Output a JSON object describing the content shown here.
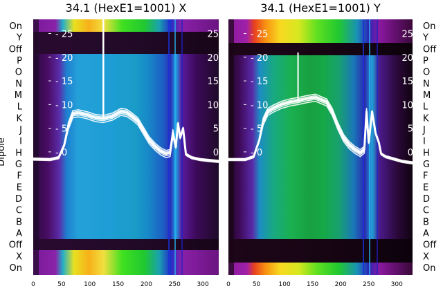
{
  "chart_data": [
    {
      "type": "heatmap",
      "title": "34.1 (HexE1=1001) X",
      "ylabel": "Dipole",
      "dipole_labels_left": [
        "On",
        "Y",
        "Off",
        "P",
        "O",
        "N",
        "M",
        "L",
        "K",
        "J",
        "I",
        "H",
        "G",
        "F",
        "E",
        "D",
        "C",
        "B",
        "A",
        "Off",
        "X",
        "On"
      ],
      "x_ticks": [
        0,
        50,
        100,
        150,
        200,
        250,
        300
      ],
      "y_ticks": [
        0,
        5,
        10,
        15,
        20,
        25
      ],
      "xlim": [
        0,
        328
      ],
      "ylim": [
        -26,
        28
      ],
      "spike_x": 124,
      "series": [
        {
          "x": [
            0,
            30,
            45,
            55,
            62,
            70,
            80,
            95,
            110,
            124,
            140,
            155,
            165,
            175,
            185,
            195,
            205,
            215,
            225,
            235,
            242,
            247,
            252,
            256,
            260,
            265,
            270,
            280,
            295,
            310,
            328
          ],
          "y": [
            -1.5,
            -1.6,
            -1.2,
            1.5,
            5.5,
            8,
            8.2,
            7.8,
            7.2,
            7.0,
            7.5,
            8.5,
            8.3,
            7.5,
            6.5,
            4.5,
            2.5,
            1.2,
            0.2,
            -0.4,
            -0.2,
            4,
            1,
            6,
            3,
            5,
            -0.5,
            -1.2,
            -1.6,
            -1.8,
            -2.0
          ]
        }
      ]
    },
    {
      "type": "heatmap",
      "title": "34.1 (HexE1=1001) Y",
      "dipole_labels_right": [
        "On",
        "Y",
        "Off",
        "P",
        "O",
        "N",
        "M",
        "L",
        "K",
        "J",
        "I",
        "H",
        "G",
        "F",
        "E",
        "D",
        "C",
        "B",
        "A",
        "Off",
        "X",
        "On"
      ],
      "x_ticks": [
        0,
        50,
        100,
        150,
        200,
        250,
        300
      ],
      "y_ticks": [
        0,
        5,
        10,
        15,
        20,
        25
      ],
      "xlim": [
        0,
        328
      ],
      "ylim": [
        -26,
        28
      ],
      "spike_x": 124,
      "series": [
        {
          "x": [
            0,
            30,
            45,
            55,
            62,
            70,
            80,
            95,
            110,
            124,
            140,
            155,
            165,
            175,
            185,
            195,
            205,
            215,
            225,
            235,
            242,
            246,
            250,
            256,
            262,
            268,
            272,
            280,
            295,
            310,
            328
          ],
          "y": [
            -1.6,
            -1.6,
            -1.0,
            2.5,
            6.5,
            8.5,
            9.2,
            10,
            10.5,
            10.8,
            11.2,
            11.5,
            11,
            10.5,
            8.5,
            5.5,
            3,
            1.5,
            0.5,
            -0.2,
            0.5,
            8.5,
            2,
            8.5,
            4,
            2,
            -0.4,
            -1.0,
            -1.5,
            -2.0,
            -2.3
          ]
        }
      ]
    }
  ]
}
